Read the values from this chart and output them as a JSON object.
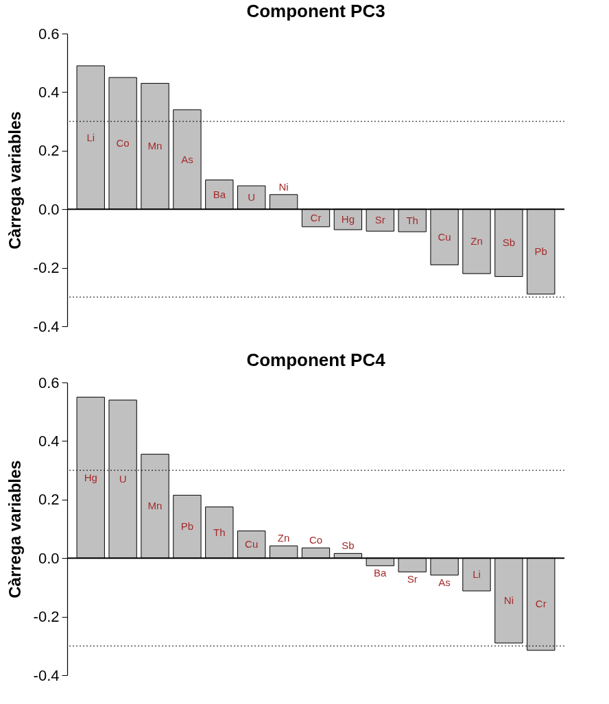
{
  "chart_data": [
    {
      "type": "bar",
      "title": "Component PC3",
      "ylabel": "Càrrega variables",
      "categories": [
        "Li",
        "Co",
        "Mn",
        "As",
        "Ba",
        "U",
        "Ni",
        "Cr",
        "Hg",
        "Sr",
        "Th",
        "Cu",
        "Zn",
        "Sb",
        "Pb"
      ],
      "values": [
        0.49,
        0.45,
        0.43,
        0.34,
        0.1,
        0.08,
        0.05,
        -0.06,
        -0.07,
        -0.075,
        -0.077,
        -0.19,
        -0.22,
        -0.23,
        -0.29
      ],
      "color": "#c0c0c0",
      "ylim": [
        -0.4,
        0.6
      ],
      "yticks": [
        {
          "value": -0.4,
          "label": "-0.4"
        },
        {
          "value": -0.2,
          "label": "-0.2"
        },
        {
          "value": 0,
          "label": "0.0"
        },
        {
          "value": 0.2,
          "label": "0.2"
        },
        {
          "value": 0.4,
          "label": "0.4"
        },
        {
          "value": 0.6,
          "label": "0.6"
        }
      ],
      "tick_labels": "y",
      "grid": false,
      "ref_lines": [
        {
          "axis": "y",
          "value": 0,
          "line_style": "solid",
          "color": "#000000"
        },
        {
          "axis": "y",
          "value": 0.3,
          "line_style": "dotted",
          "color": "#000000"
        },
        {
          "axis": "y",
          "value": -0.3,
          "line_style": "dotted",
          "color": "#000000"
        }
      ]
    },
    {
      "type": "bar",
      "title": "Component PC4",
      "ylabel": "Càrrega variables",
      "categories": [
        "Hg",
        "U",
        "Mn",
        "Pb",
        "Th",
        "Cu",
        "Zn",
        "Co",
        "Sb",
        "Ba",
        "Sr",
        "As",
        "Li",
        "Ni",
        "Cr"
      ],
      "values": [
        0.55,
        0.54,
        0.355,
        0.215,
        0.175,
        0.093,
        0.042,
        0.035,
        0.016,
        -0.026,
        -0.047,
        -0.058,
        -0.112,
        -0.29,
        -0.315
      ],
      "color": "#c0c0c0",
      "ylim": [
        -0.4,
        0.6
      ],
      "yticks": [
        {
          "value": -0.4,
          "label": "-0.4"
        },
        {
          "value": -0.2,
          "label": "-0.2"
        },
        {
          "value": 0,
          "label": "0.0"
        },
        {
          "value": 0.2,
          "label": "0.2"
        },
        {
          "value": 0.4,
          "label": "0.4"
        },
        {
          "value": 0.6,
          "label": "0.6"
        }
      ],
      "tick_labels": "y",
      "grid": false,
      "ref_lines": [
        {
          "axis": "y",
          "value": 0,
          "line_style": "solid",
          "color": "#000000"
        },
        {
          "axis": "y",
          "value": 0.3,
          "line_style": "dotted",
          "color": "#000000"
        },
        {
          "axis": "y",
          "value": -0.3,
          "line_style": "dotted",
          "color": "#000000"
        }
      ]
    }
  ]
}
